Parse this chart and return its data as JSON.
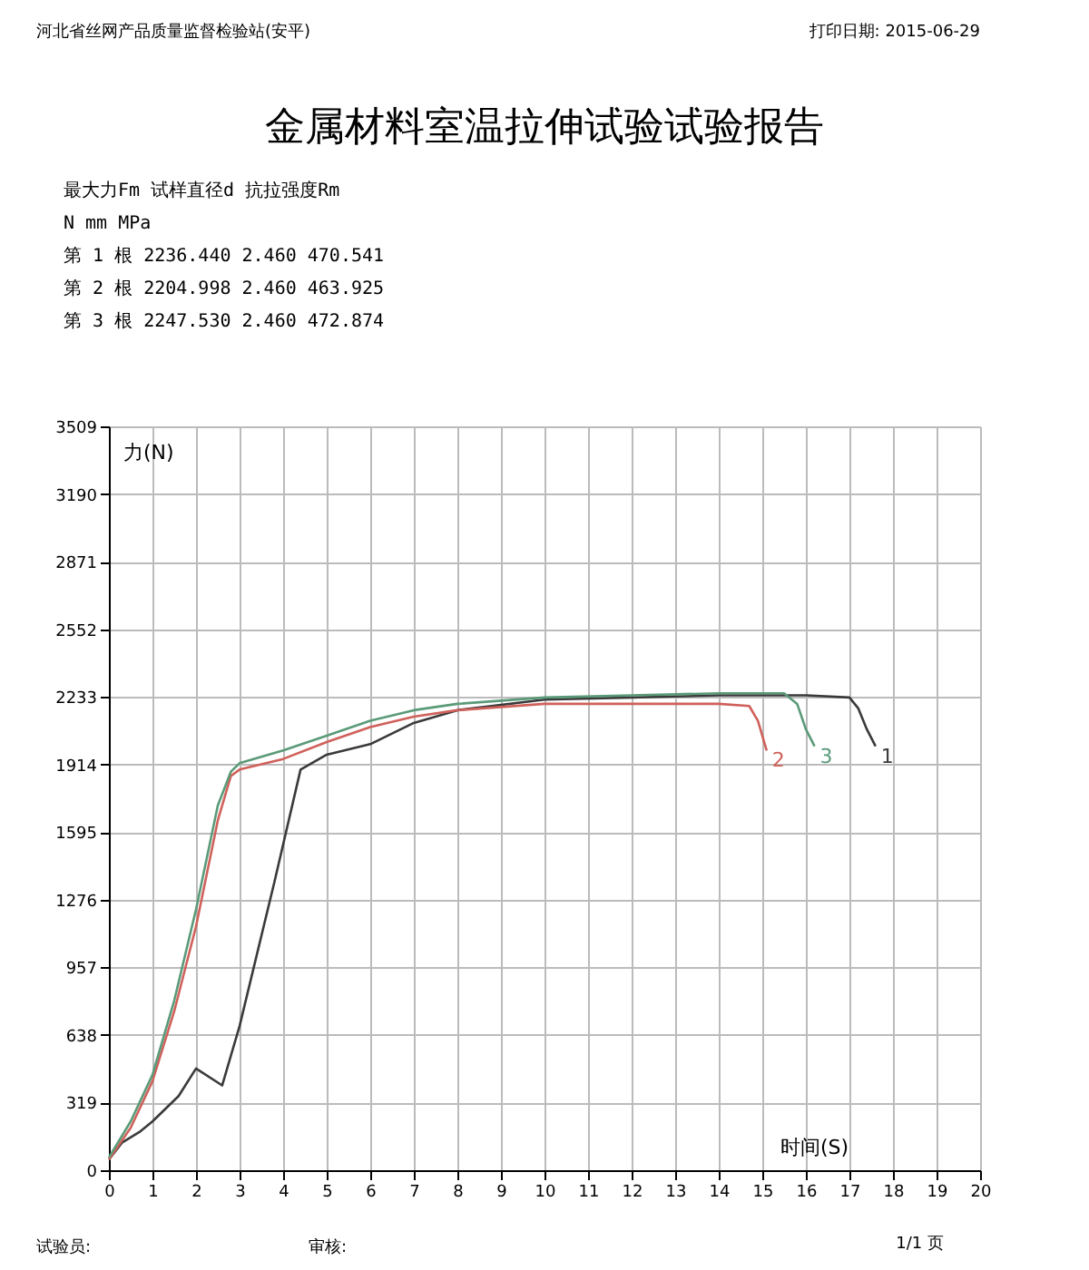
{
  "chart_data": {
    "type": "line",
    "title": "金属材料室温拉伸试验试验报告",
    "xlabel": "时间(S)",
    "ylabel": "力(N)",
    "annotations": [
      "河北省丝网产品质量监督检验站(安平)",
      "打印日期: 2015-06-29",
      "         最大力Fm   试样直径d  抗拉强度Rm",
      "         N          mm         MPa",
      "第 1 根  2236.440   2.460      470.541",
      "第 2 根  2204.998   2.460      463.925",
      "第 3 根  2247.530   2.460      472.874",
      "1/1 页",
      "试验员:",
      "审核:"
    ],
    "xlim": [
      0,
      20
    ],
    "xticks": [
      0,
      1,
      2,
      3,
      4,
      5,
      6,
      7,
      8,
      9,
      10,
      11,
      12,
      13,
      14,
      15,
      16,
      17,
      18,
      19,
      20
    ],
    "ylim": [
      0,
      3509
    ],
    "yticks": [
      0,
      319,
      638,
      957,
      1276,
      1595,
      1914,
      2233,
      2552,
      2871,
      3190,
      3509
    ],
    "grid": true,
    "legend": false,
    "series": [
      {
        "name": "1",
        "color": "#3a3a3a",
        "x": [
          0,
          0.3,
          0.7,
          1,
          1.6,
          2,
          2.6,
          3,
          3.8,
          4.4,
          5,
          6,
          7,
          8,
          10,
          12,
          14,
          16,
          17,
          17.2,
          17.4,
          17.6
        ],
        "values": [
          50,
          130,
          180,
          230,
          350,
          480,
          400,
          680,
          1360,
          1890,
          1960,
          2010,
          2110,
          2170,
          2220,
          2230,
          2240,
          2240,
          2230,
          2180,
          2080,
          2000
        ]
      },
      {
        "name": "2",
        "color": "#d0605a",
        "x": [
          0,
          0.5,
          1,
          1.5,
          2,
          2.5,
          2.8,
          3,
          4,
          5,
          6,
          7,
          8,
          10,
          12,
          14,
          14.7,
          14.9,
          15.1
        ],
        "values": [
          50,
          200,
          420,
          750,
          1150,
          1650,
          1860,
          1890,
          1940,
          2020,
          2090,
          2140,
          2170,
          2200,
          2200,
          2200,
          2190,
          2120,
          1980
        ]
      },
      {
        "name": "3",
        "color": "#5a9a78",
        "x": [
          0,
          0.5,
          1,
          1.5,
          2,
          2.5,
          2.8,
          3,
          4,
          5,
          6,
          7,
          8,
          10,
          12,
          14,
          15.5,
          15.8,
          16,
          16.2
        ],
        "values": [
          60,
          230,
          450,
          800,
          1230,
          1720,
          1880,
          1920,
          1980,
          2050,
          2120,
          2170,
          2200,
          2230,
          2240,
          2250,
          2250,
          2200,
          2080,
          2000
        ]
      }
    ]
  }
}
